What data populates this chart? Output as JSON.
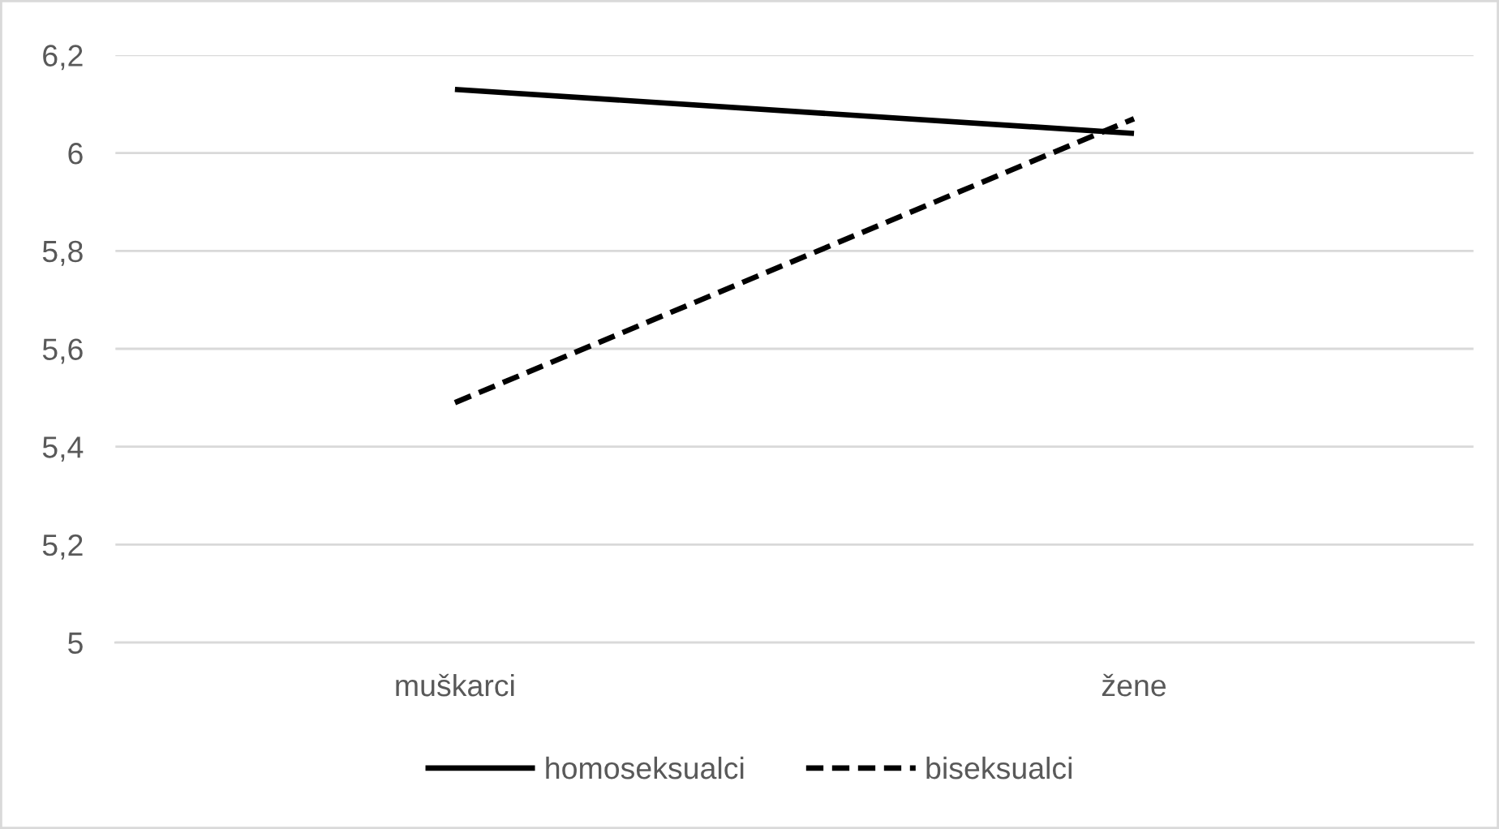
{
  "chart_data": {
    "type": "line",
    "categories": [
      "muškarci",
      "žene"
    ],
    "series": [
      {
        "name": "homoseksualci",
        "color": "#000000",
        "line_style": "solid",
        "values": [
          6.13,
          6.04
        ]
      },
      {
        "name": "biseksualci",
        "color": "#000000",
        "line_style": "dashed",
        "values": [
          5.49,
          6.07
        ]
      }
    ],
    "ylim": [
      5,
      6.2
    ],
    "yticks": [
      5,
      {
        "value": 5.2,
        "label": "5,2"
      },
      {
        "value": 5.4,
        "label": "5,4"
      },
      {
        "value": 5.6,
        "label": "5,6"
      },
      {
        "value": 5.8,
        "label": "5,8"
      },
      6,
      {
        "value": 6.2,
        "label": "6,2"
      }
    ],
    "grid": "y",
    "legend": "bottom"
  }
}
